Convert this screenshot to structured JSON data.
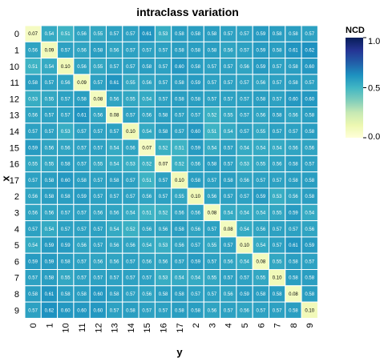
{
  "chart_data": {
    "type": "heatmap",
    "title": "intraclass variation",
    "xlabel": "y",
    "ylabel": "x",
    "row_labels": [
      "0",
      "1",
      "10",
      "11",
      "12",
      "13",
      "14",
      "15",
      "16",
      "17",
      "2",
      "3",
      "4",
      "5",
      "6",
      "7",
      "8",
      "9"
    ],
    "col_labels": [
      "0",
      "1",
      "10",
      "11",
      "12",
      "13",
      "14",
      "15",
      "16",
      "17",
      "2",
      "3",
      "4",
      "5",
      "6",
      "7",
      "8",
      "9"
    ],
    "cell_text": [
      [
        "0.07",
        "0.54",
        "0.51",
        "0.56",
        "0.55",
        "0.57",
        "0.57",
        "0.61",
        "0.53",
        "0.58",
        "0.58",
        "0.58",
        "0.57",
        "0.57",
        "0.59",
        "0.58",
        "0.58",
        "0.57"
      ],
      [
        "0.56",
        "0.09",
        "0.57",
        "0.56",
        "0.58",
        "0.56",
        "0.57",
        "0.57",
        "0.57",
        "0.58",
        "0.58",
        "0.58",
        "0.56",
        "0.57",
        "0.59",
        "0.58",
        "0.61",
        "0.62"
      ],
      [
        "0.51",
        "0.54",
        "0.10",
        "0.56",
        "0.55",
        "0.57",
        "0.57",
        "0.58",
        "0.57",
        "0.60",
        "0.58",
        "0.57",
        "0.57",
        "0.56",
        "0.59",
        "0.57",
        "0.58",
        "0.60"
      ],
      [
        "0.58",
        "0.57",
        "0.56",
        "0.09",
        "0.57",
        "0.61",
        "0.55",
        "0.56",
        "0.57",
        "0.58",
        "0.59",
        "0.57",
        "0.57",
        "0.57",
        "0.56",
        "0.57",
        "0.58",
        "0.57"
      ],
      [
        "0.53",
        "0.55",
        "0.57",
        "0.58",
        "0.08",
        "0.56",
        "0.55",
        "0.54",
        "0.57",
        "0.58",
        "0.58",
        "0.57",
        "0.57",
        "0.57",
        "0.58",
        "0.57",
        "0.60",
        "0.60"
      ],
      [
        "0.56",
        "0.57",
        "0.57",
        "0.61",
        "0.56",
        "0.08",
        "0.57",
        "0.56",
        "0.58",
        "0.57",
        "0.57",
        "0.52",
        "0.55",
        "0.57",
        "0.56",
        "0.58",
        "0.56",
        "0.58"
      ],
      [
        "0.57",
        "0.57",
        "0.53",
        "0.57",
        "0.57",
        "0.57",
        "0.10",
        "0.54",
        "0.58",
        "0.57",
        "0.60",
        "0.51",
        "0.54",
        "0.57",
        "0.55",
        "0.57",
        "0.57",
        "0.58"
      ],
      [
        "0.59",
        "0.56",
        "0.56",
        "0.57",
        "0.57",
        "0.54",
        "0.56",
        "0.07",
        "0.52",
        "0.51",
        "0.59",
        "0.54",
        "0.57",
        "0.54",
        "0.54",
        "0.54",
        "0.56",
        "0.56"
      ],
      [
        "0.55",
        "0.55",
        "0.58",
        "0.57",
        "0.55",
        "0.54",
        "0.53",
        "0.52",
        "0.07",
        "0.52",
        "0.56",
        "0.58",
        "0.57",
        "0.53",
        "0.55",
        "0.56",
        "0.58",
        "0.57"
      ],
      [
        "0.57",
        "0.58",
        "0.60",
        "0.58",
        "0.57",
        "0.58",
        "0.57",
        "0.51",
        "0.57",
        "0.10",
        "0.58",
        "0.57",
        "0.58",
        "0.56",
        "0.57",
        "0.57",
        "0.58",
        "0.58"
      ],
      [
        "0.56",
        "0.58",
        "0.58",
        "0.59",
        "0.57",
        "0.57",
        "0.57",
        "0.56",
        "0.57",
        "0.55",
        "0.10",
        "0.56",
        "0.57",
        "0.57",
        "0.59",
        "0.53",
        "0.56",
        "0.58"
      ],
      [
        "0.56",
        "0.56",
        "0.57",
        "0.57",
        "0.56",
        "0.56",
        "0.54",
        "0.51",
        "0.52",
        "0.56",
        "0.56",
        "0.08",
        "0.54",
        "0.54",
        "0.54",
        "0.55",
        "0.59",
        "0.54"
      ],
      [
        "0.57",
        "0.54",
        "0.57",
        "0.57",
        "0.57",
        "0.54",
        "0.52",
        "0.56",
        "0.56",
        "0.58",
        "0.56",
        "0.57",
        "0.08",
        "0.54",
        "0.56",
        "0.57",
        "0.57",
        "0.56"
      ],
      [
        "0.54",
        "0.59",
        "0.59",
        "0.56",
        "0.57",
        "0.56",
        "0.56",
        "0.54",
        "0.53",
        "0.56",
        "0.57",
        "0.55",
        "0.57",
        "0.10",
        "0.54",
        "0.57",
        "0.61",
        "0.59"
      ],
      [
        "0.59",
        "0.59",
        "0.58",
        "0.57",
        "0.56",
        "0.56",
        "0.57",
        "0.56",
        "0.56",
        "0.57",
        "0.59",
        "0.57",
        "0.56",
        "0.54",
        "0.08",
        "0.55",
        "0.58",
        "0.57"
      ],
      [
        "0.57",
        "0.58",
        "0.55",
        "0.57",
        "0.57",
        "0.57",
        "0.57",
        "0.57",
        "0.53",
        "0.54",
        "0.54",
        "0.55",
        "0.57",
        "0.57",
        "0.55",
        "0.10",
        "0.58",
        "0.58"
      ],
      [
        "0.58",
        "0.61",
        "0.58",
        "0.58",
        "0.60",
        "0.58",
        "0.57",
        "0.56",
        "0.58",
        "0.58",
        "0.57",
        "0.57",
        "0.56",
        "0.59",
        "0.58",
        "0.58",
        "0.08",
        "0.58"
      ],
      [
        "0.57",
        "0.62",
        "0.60",
        "0.60",
        "0.60",
        "0.57",
        "0.58",
        "0.57",
        "0.57",
        "0.58",
        "0.58",
        "0.56",
        "0.57",
        "0.56",
        "0.57",
        "0.57",
        "0.58",
        "0.10"
      ]
    ],
    "colorbar": {
      "title": "NCD",
      "range": [
        0,
        1
      ],
      "ticks": [
        "0.0",
        "0.5",
        "1.0"
      ],
      "colors": [
        "#ffffd9",
        "#edf8b1",
        "#c7e9b4",
        "#7fcdbb",
        "#41b6c4",
        "#1d91c0",
        "#225ea8",
        "#253494",
        "#081d58"
      ]
    }
  }
}
